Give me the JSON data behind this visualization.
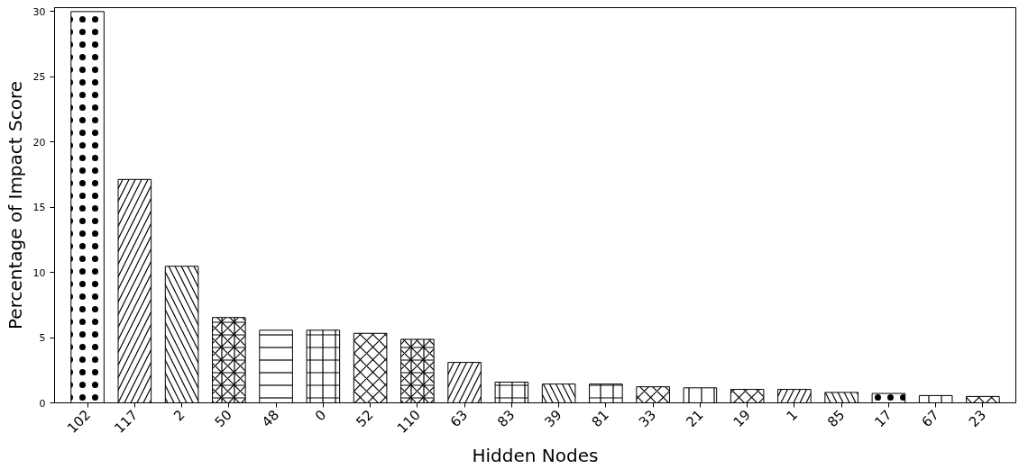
{
  "chart_data": {
    "type": "bar",
    "xlabel": "Hidden Nodes",
    "ylabel": "Percentage of Impact Score",
    "categories": [
      "102",
      "117",
      "2",
      "50",
      "48",
      "0",
      "52",
      "110",
      "63",
      "83",
      "39",
      "81",
      "33",
      "21",
      "19",
      "1",
      "85",
      "17",
      "67",
      "23"
    ],
    "values": [
      30.0,
      17.13,
      10.47,
      6.54,
      5.57,
      5.57,
      5.33,
      4.87,
      3.1,
      1.59,
      1.44,
      1.44,
      1.23,
      1.15,
      1.03,
      1.03,
      0.8,
      0.72,
      0.56,
      0.49
    ],
    "color": "#ffffff",
    "ylim": [
      0,
      30.3
    ],
    "yticks": [
      0,
      5,
      10,
      15,
      20,
      25,
      30
    ],
    "grid": false
  }
}
